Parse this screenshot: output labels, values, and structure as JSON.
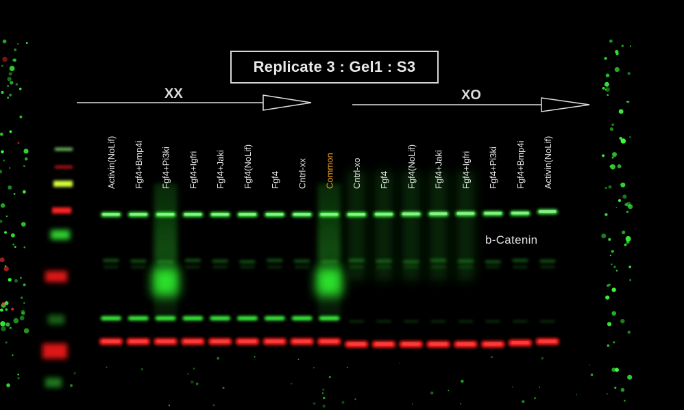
{
  "title": "Replicate 3 : Gel1 : S3",
  "groups": {
    "left": "XX",
    "right": "XO"
  },
  "lanes": [
    "Activin(NoLif)",
    "Fgf4+Bmp4i",
    "Fgf4+Pi3ki",
    "Fgf4+Igfri",
    "Fgf4+Jaki",
    "Fgf4(NoLif)",
    "Fgf4",
    "Cntrl-xx",
    "Common",
    "Cntrl-xo",
    "Fgf4",
    "Fgf4(NoLif)",
    "Fgf4+Jaki",
    "Fgf4+Igfri",
    "Fgf4+Pi3ki",
    "Fgf4+Bmp4i",
    "Activin(NoLif)"
  ],
  "highlight_lane": 8,
  "protein": "b-Catenin",
  "colors": {
    "background": "#000000",
    "green_band": "#33ff33",
    "red_band": "#ff1a1a",
    "highlight_label": "#f2a02a",
    "text": "#e6e6e6"
  }
}
